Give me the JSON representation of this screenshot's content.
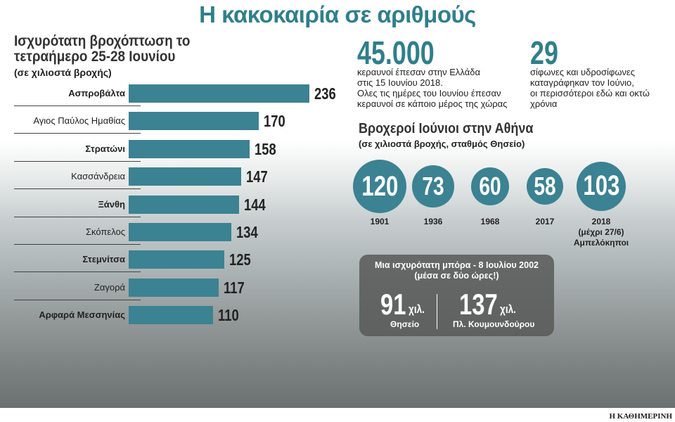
{
  "title": "Η κακοκαιρία σε αριθμούς",
  "colors": {
    "accent": "#3b8292",
    "title": "#2f7f8c"
  },
  "chart_data": [
    {
      "type": "bar",
      "orientation": "horizontal",
      "title": "Ισχυρότατη βροχόπτωση το τετραήμερο 25-28 Ιουνίου",
      "subtitle": "(σε χιλιοστά βροχής)",
      "categories": [
        "Ασπροβάλτα",
        "Αγιος Παύλος Ημαθίας",
        "Στρατώνι",
        "Κασσάνδρεια",
        "Ξάνθη",
        "Σκόπελος",
        "Στεμνίτσα",
        "Ζαγορά",
        "Αρφαρά Μεσσηνίας"
      ],
      "bold": [
        true,
        false,
        true,
        false,
        true,
        false,
        true,
        false,
        true
      ],
      "values": [
        236,
        170,
        158,
        147,
        144,
        134,
        125,
        117,
        110
      ],
      "value_labels": [
        "236",
        "170",
        "158",
        "147",
        "144",
        "134",
        "125",
        "117",
        "110"
      ]
    },
    {
      "type": "bubble",
      "title": "Βροχεροί Ιούνιοι στην Αθήνα",
      "subtitle": "(σε χιλιοστά βροχής, σταθμός Θησείο)",
      "categories": [
        "1901",
        "1936",
        "1968",
        "2017",
        "2018"
      ],
      "category_notes": [
        "",
        "",
        "",
        "",
        "(μέχρι 27/6)\nΑμπελόκηποι"
      ],
      "values": [
        120,
        73,
        60,
        58,
        103
      ],
      "value_labels": [
        "120",
        "73",
        "60",
        "58",
        "103"
      ]
    }
  ],
  "facts": [
    {
      "number": "45.000",
      "text": [
        "κεραυνοί έπεσαν στην Ελλάδα",
        "στις 15 Ιουνίου 2018.",
        "Ολες τις ημέρες του Ιουνίου έπεσαν",
        "κεραυνοί σε κάποιο μέρος της χώρας"
      ]
    },
    {
      "number": "29",
      "text": [
        "σίφωνες και υδροσίφωνες",
        "καταγράφηκαν τον Ιούνιο,",
        "οι περισσότεροι εδώ και οκτώ",
        "χρόνια"
      ]
    }
  ],
  "storm": {
    "title": "Μια ισχυρότατη μπόρα - 8 Ιουλίου 2002",
    "subtitle": "(μέσα σε δύο ώρες!)",
    "items": [
      {
        "value": "91",
        "unit": "χιλ.",
        "place": "Θησείο"
      },
      {
        "value": "137",
        "unit": "χιλ.",
        "place": "Πλ. Κουμουνδούρου"
      }
    ]
  },
  "footer": "Η ΚΑΘΗΜΕΡΙΝΗ"
}
